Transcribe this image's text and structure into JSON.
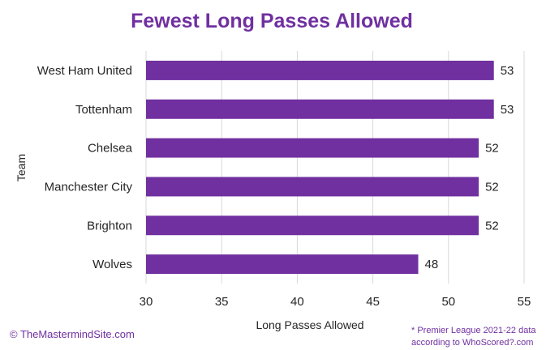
{
  "chart_data": {
    "type": "bar",
    "orientation": "horizontal",
    "title": "Fewest Long Passes Allowed",
    "xlabel": "Long Passes Allowed",
    "ylabel": "Team",
    "categories": [
      "West Ham United",
      "Tottenham",
      "Chelsea",
      "Manchester City",
      "Brighton",
      "Wolves"
    ],
    "values": [
      53,
      53,
      52,
      52,
      52,
      48
    ],
    "xlim": [
      30,
      55
    ],
    "xticks": [
      "30",
      "35",
      "40",
      "45",
      "50",
      "55"
    ],
    "grid": true,
    "data_labels": true,
    "bar_color": "#7030a0"
  },
  "credit": "© TheMastermindSite.com",
  "note": {
    "line1": "* Premier League 2021-22 data",
    "line2": "according to WhoScored?.com"
  },
  "colors": {
    "accent": "#7030a0",
    "text": "#262626",
    "grid": "#d9d9d9"
  }
}
